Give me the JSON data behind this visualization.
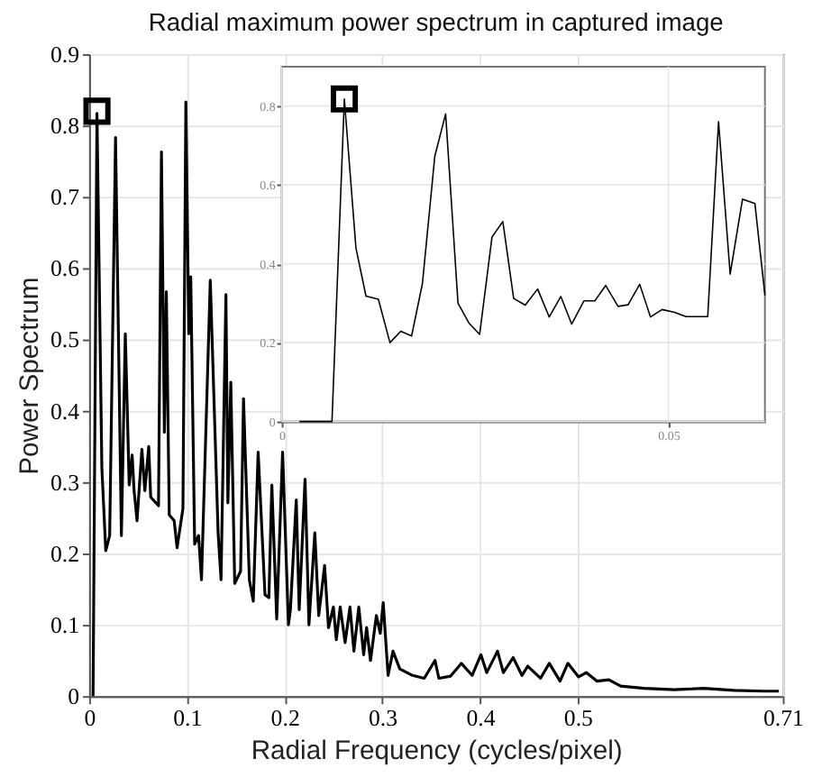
{
  "chart_data": [
    {
      "type": "line",
      "title": "Radial maximum power spectrum in captured image",
      "xlabel": "Radial Frequency (cycles/pixel)",
      "ylabel": "Power Spectrum",
      "xlim": [
        0,
        0.71
      ],
      "ylim": [
        0,
        0.9
      ],
      "xticks": [
        0,
        0.1,
        0.2,
        0.3,
        0.4,
        0.5,
        0.71
      ],
      "yticks": [
        0,
        0.1,
        0.2,
        0.3,
        0.4,
        0.5,
        0.6,
        0.7,
        0.8,
        0.9
      ],
      "grid": true,
      "series": [
        {
          "color": "#000000",
          "x": [
            0.004,
            0.008,
            0.013,
            0.017,
            0.021,
            0.027,
            0.033,
            0.037,
            0.041,
            0.044,
            0.046,
            0.049,
            0.054,
            0.057,
            0.061,
            0.063,
            0.071,
            0.074,
            0.077,
            0.079,
            0.082,
            0.087,
            0.09,
            0.096,
            0.099,
            0.102,
            0.104,
            0.108,
            0.112,
            0.115,
            0.124,
            0.132,
            0.135,
            0.14,
            0.142,
            0.145,
            0.149,
            0.155,
            0.158,
            0.164,
            0.168,
            0.173,
            0.18,
            0.184,
            0.187,
            0.192,
            0.198,
            0.204,
            0.206,
            0.212,
            0.215,
            0.221,
            0.225,
            0.231,
            0.235,
            0.241,
            0.245,
            0.25,
            0.253,
            0.257,
            0.262,
            0.267,
            0.271,
            0.276,
            0.281,
            0.284,
            0.288,
            0.294,
            0.298,
            0.301,
            0.306,
            0.311,
            0.318,
            0.331,
            0.343,
            0.354,
            0.358,
            0.37,
            0.381,
            0.392,
            0.401,
            0.407,
            0.418,
            0.424,
            0.434,
            0.443,
            0.449,
            0.462,
            0.471,
            0.482,
            0.49,
            0.501,
            0.509,
            0.52,
            0.532,
            0.544,
            0.568,
            0.599,
            0.629,
            0.66,
            0.69,
            0.706
          ],
          "values": [
            0,
            0.817,
            0.32,
            0.204,
            0.225,
            0.783,
            0.225,
            0.508,
            0.296,
            0.338,
            0.288,
            0.246,
            0.346,
            0.288,
            0.35,
            0.279,
            0.267,
            0.763,
            0.37,
            0.567,
            0.254,
            0.246,
            0.208,
            0.263,
            0.833,
            0.508,
            0.588,
            0.213,
            0.225,
            0.163,
            0.583,
            0.229,
            0.163,
            0.563,
            0.271,
            0.44,
            0.158,
            0.175,
            0.417,
            0.163,
            0.133,
            0.342,
            0.142,
            0.138,
            0.296,
            0.108,
            0.342,
            0.1,
            0.121,
            0.275,
            0.121,
            0.304,
            0.1,
            0.229,
            0.113,
            0.183,
            0.096,
            0.125,
            0.079,
            0.125,
            0.075,
            0.125,
            0.063,
            0.125,
            0.058,
            0.096,
            0.05,
            0.113,
            0.088,
            0.131,
            0.029,
            0.063,
            0.038,
            0.029,
            0.025,
            0.05,
            0.025,
            0.028,
            0.046,
            0.029,
            0.058,
            0.033,
            0.063,
            0.033,
            0.054,
            0.029,
            0.042,
            0.025,
            0.046,
            0.021,
            0.046,
            0.027,
            0.033,
            0.021,
            0.023,
            0.014,
            0.011,
            0.009,
            0.011,
            0.008,
            0.007,
            0.007
          ]
        },
        {
          "type": "scatter",
          "marker": "square",
          "color": "#000000",
          "x": [
            0.008
          ],
          "values": [
            0.82
          ]
        }
      ]
    },
    {
      "type": "line",
      "xlim": [
        0,
        0.0625
      ],
      "ylim": [
        0,
        0.9
      ],
      "xticks": [
        0,
        0.05
      ],
      "yticks": [
        0,
        0.2,
        0.4,
        0.6,
        0.8
      ],
      "grid": true,
      "series": [
        {
          "color": "#000000",
          "x": [
            0.0023,
            0.0065,
            0.0081,
            0.0096,
            0.0109,
            0.0125,
            0.014,
            0.0154,
            0.0168,
            0.0182,
            0.0198,
            0.0212,
            0.0228,
            0.0242,
            0.0256,
            0.0272,
            0.0286,
            0.03,
            0.0315,
            0.0331,
            0.0346,
            0.0361,
            0.0375,
            0.0391,
            0.0405,
            0.0419,
            0.0435,
            0.0448,
            0.0463,
            0.0477,
            0.0492,
            0.0508,
            0.0523,
            0.0551,
            0.0565,
            0.058,
            0.0596,
            0.0612,
            0.0625
          ],
          "values": [
            0,
            0,
            0.818,
            0.44,
            0.318,
            0.31,
            0.2,
            0.229,
            0.217,
            0.35,
            0.673,
            0.78,
            0.3,
            0.25,
            0.221,
            0.468,
            0.507,
            0.312,
            0.295,
            0.336,
            0.265,
            0.317,
            0.247,
            0.306,
            0.306,
            0.345,
            0.292,
            0.296,
            0.348,
            0.265,
            0.284,
            0.277,
            0.266,
            0.266,
            0.76,
            0.374,
            0.564,
            0.553,
            0.32
          ]
        },
        {
          "type": "scatter",
          "marker": "square",
          "color": "#000000",
          "x": [
            0.0081
          ],
          "values": [
            0.818
          ]
        }
      ]
    }
  ]
}
